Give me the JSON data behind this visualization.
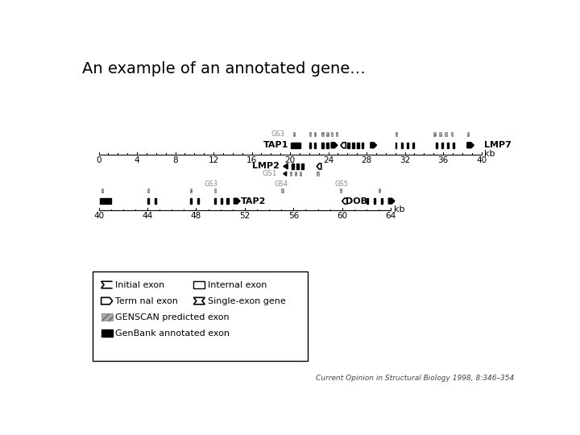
{
  "title": "An example of an annotated gene…",
  "title_fontsize": 14,
  "background_color": "#ffffff",
  "citation": "Current Opinion in Structural Biology 1998, 8:346–354",
  "track1_ticks": [
    0,
    4,
    8,
    12,
    16,
    20,
    24,
    28,
    32,
    36,
    40
  ],
  "track2_ticks": [
    40,
    44,
    48,
    52,
    56,
    60,
    64
  ]
}
